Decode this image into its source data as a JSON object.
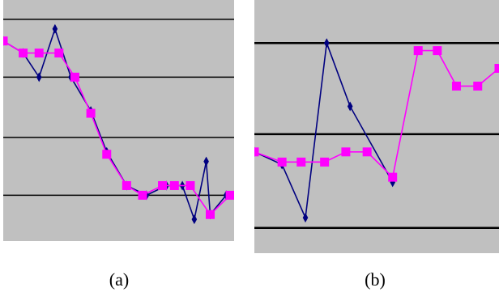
{
  "colors": {
    "background": "#c0c0c0",
    "gridline": "#000000",
    "series_dark": "#000080",
    "series_magenta": "#ff00ff"
  },
  "captions": {
    "a": "(a)",
    "b": "(b)"
  },
  "chart_data": [
    {
      "type": "line",
      "panel_label": "(a)",
      "x": [
        0,
        1,
        2,
        3,
        4,
        5,
        6,
        7,
        8,
        9,
        10,
        11,
        12,
        13,
        14,
        15,
        16,
        17,
        18,
        19,
        20,
        21,
        22,
        23,
        24,
        25,
        26,
        27,
        28,
        29
      ],
      "xlim": [
        0,
        29
      ],
      "ylim": [
        0,
        1
      ],
      "grid": true,
      "gridlines_y": [
        0.92,
        0.68,
        0.43,
        0.19
      ],
      "series": [
        {
          "marker": "diamond",
          "color": "#000080",
          "x": [
            0,
            2.5,
            4.5,
            6.5,
            8.5,
            11,
            13,
            15.5,
            18,
            20.5,
            22.5,
            24,
            25.5,
            26,
            28
          ],
          "values": [
            0.83,
            0.78,
            0.68,
            0.88,
            0.68,
            0.54,
            0.37,
            0.23,
            0.19,
            0.23,
            0.23,
            0.09,
            0.33,
            0.11,
            0.19
          ]
        },
        {
          "marker": "square",
          "color": "#ff00ff",
          "x": [
            0,
            2.5,
            4.5,
            7,
            9,
            11,
            13,
            15.5,
            17.5,
            20,
            21.5,
            23.5,
            26,
            28.5
          ],
          "values": [
            0.83,
            0.78,
            0.78,
            0.78,
            0.68,
            0.53,
            0.36,
            0.23,
            0.19,
            0.23,
            0.23,
            0.23,
            0.11,
            0.19
          ]
        }
      ]
    },
    {
      "type": "line",
      "panel_label": "(b)",
      "x": [
        0,
        1,
        2,
        3,
        4,
        5,
        6,
        7,
        8,
        9,
        10,
        11
      ],
      "xlim": [
        0,
        11.5
      ],
      "ylim": [
        0,
        1
      ],
      "grid": true,
      "gridlines_y": [
        0.83,
        0.47,
        0.1
      ],
      "series": [
        {
          "marker": "diamond",
          "color": "#000080",
          "x": [
            0,
            1.3,
            2.4,
            3.4,
            4.5,
            6.5
          ],
          "values": [
            0.4,
            0.35,
            0.14,
            0.83,
            0.58,
            0.28
          ]
        },
        {
          "marker": "square",
          "color": "#ff00ff",
          "x": [
            0,
            1.3,
            2.2,
            3.3,
            4.3,
            5.3,
            6.5,
            7.7,
            8.6,
            9.5,
            10.5,
            11.5
          ],
          "values": [
            0.4,
            0.36,
            0.36,
            0.36,
            0.4,
            0.4,
            0.3,
            0.8,
            0.8,
            0.66,
            0.66,
            0.73
          ]
        }
      ]
    }
  ]
}
